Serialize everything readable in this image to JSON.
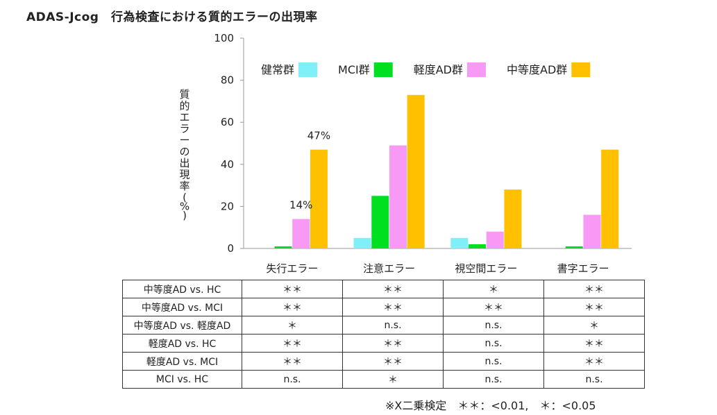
{
  "title": "ADAS-Jcog　行為検査における質的エラーの出現率",
  "chart_data": {
    "type": "bar",
    "ylabel": "質的エラーの出現率(%)",
    "ylim": [
      0,
      100
    ],
    "yticks": [
      0,
      20,
      40,
      60,
      80,
      100
    ],
    "categories": [
      "失行エラー",
      "注意エラー",
      "視空間エラー",
      "書字エラー"
    ],
    "series": [
      {
        "name": "健常群",
        "color": "#7ff0f8",
        "values": [
          0,
          5,
          5,
          0
        ]
      },
      {
        "name": "MCI群",
        "color": "#00e020",
        "values": [
          1,
          25,
          2,
          1
        ]
      },
      {
        "name": "軽度AD群",
        "color": "#f89af5",
        "values": [
          14,
          49,
          8,
          16
        ]
      },
      {
        "name": "中等度AD群",
        "color": "#ffc000",
        "values": [
          47,
          73,
          28,
          47
        ]
      }
    ],
    "annotations": [
      {
        "text": "14%",
        "category": 0,
        "series": 2
      },
      {
        "text": "47%",
        "category": 0,
        "series": 3
      }
    ],
    "legend": "top"
  },
  "table": {
    "rows": [
      {
        "label": "中等度AD vs. HC",
        "cells": [
          "＊＊",
          "＊＊",
          "＊",
          "＊＊"
        ]
      },
      {
        "label": "中等度AD vs. MCI",
        "cells": [
          "＊＊",
          "＊＊",
          "＊＊",
          "＊＊"
        ]
      },
      {
        "label": "中等度AD vs. 軽度AD",
        "cells": [
          "＊",
          "n.s.",
          "n.s.",
          "＊"
        ]
      },
      {
        "label": "軽度AD vs. HC",
        "cells": [
          "＊＊",
          "＊＊",
          "n.s.",
          "＊＊"
        ]
      },
      {
        "label": "軽度AD vs. MCI",
        "cells": [
          "＊＊",
          "＊＊",
          "n.s.",
          "＊＊"
        ]
      },
      {
        "label": "MCI vs. HC",
        "cells": [
          "n.s.",
          "＊",
          "n.s.",
          "n.s."
        ]
      }
    ]
  },
  "note": "※X二乗検定　＊＊：<0.01,　＊：<0.05"
}
